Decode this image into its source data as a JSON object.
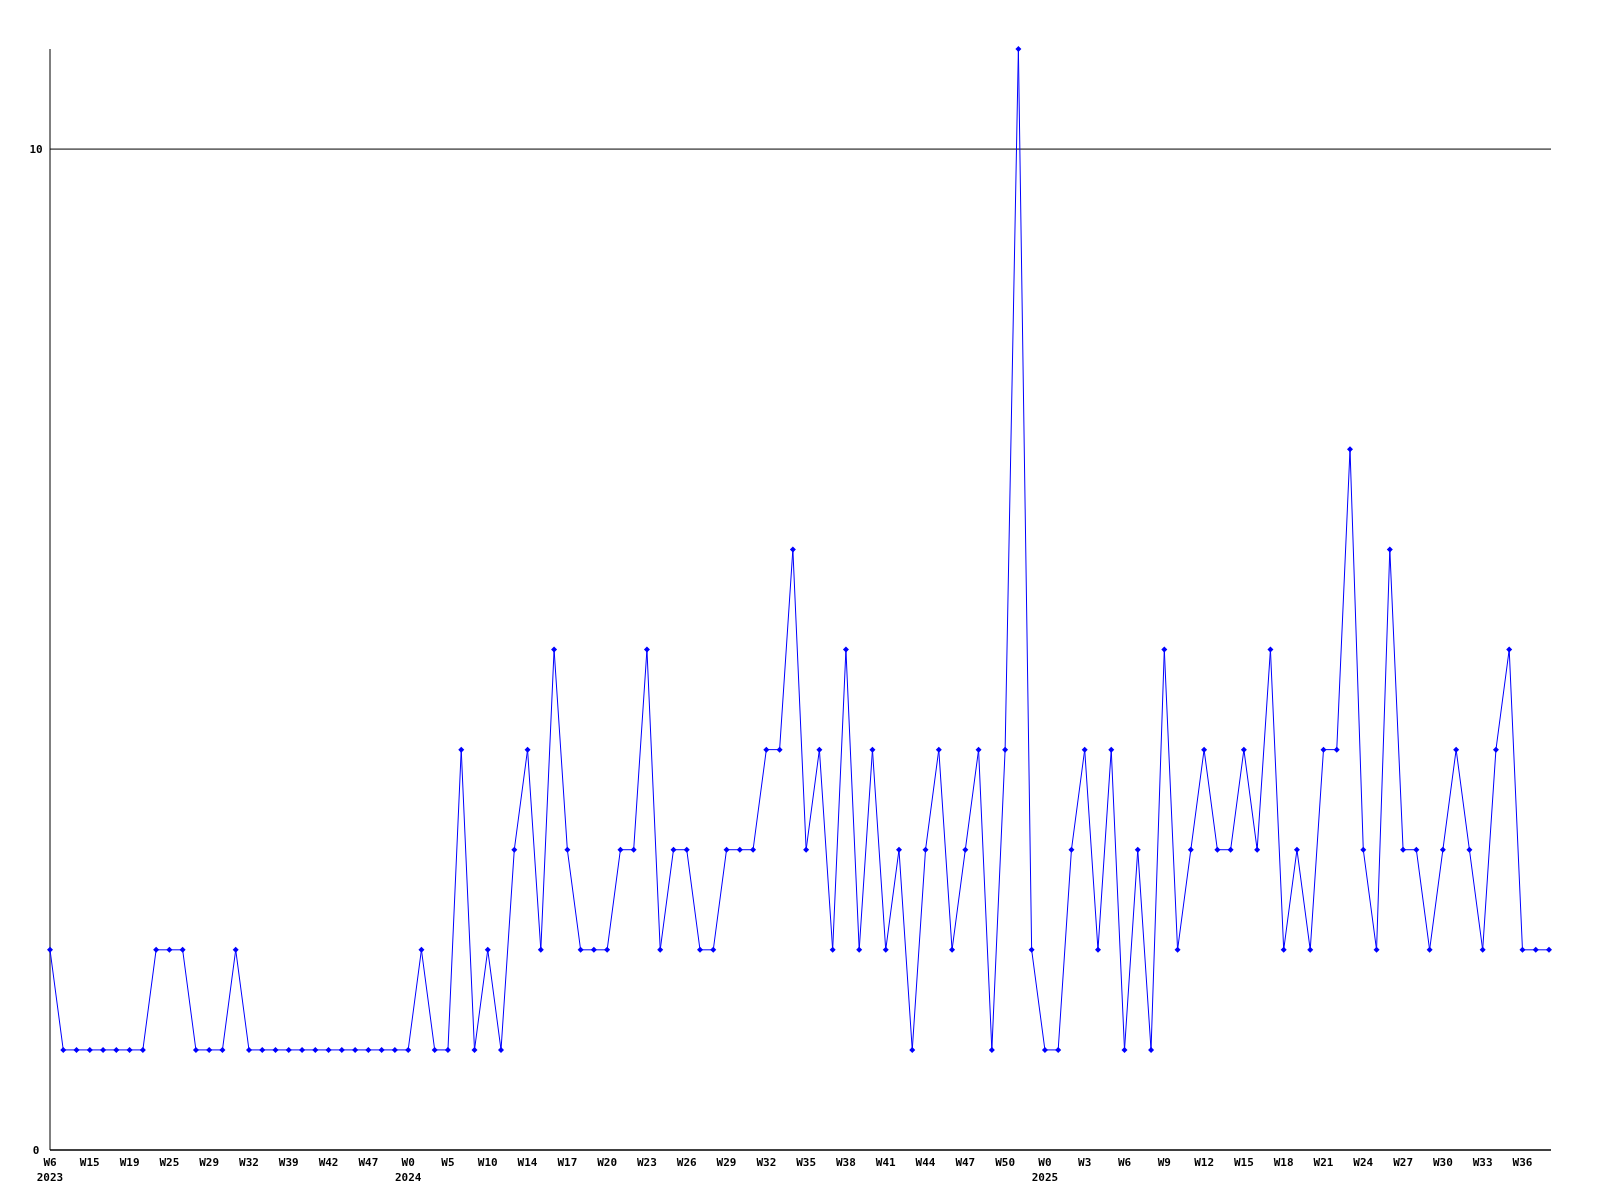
{
  "chart_data": {
    "type": "line",
    "categories": [
      "W6\n2023",
      null,
      null,
      "W15",
      null,
      null,
      "W19",
      null,
      null,
      "W25",
      null,
      null,
      "W29",
      null,
      null,
      "W32",
      null,
      null,
      "W39",
      null,
      null,
      "W42",
      null,
      null,
      "W47",
      null,
      null,
      "W0\n2024",
      null,
      null,
      "W5",
      null,
      null,
      "W10",
      null,
      null,
      "W14",
      null,
      null,
      "W17",
      null,
      null,
      "W20",
      null,
      null,
      "W23",
      null,
      null,
      "W26",
      null,
      null,
      "W29",
      null,
      null,
      "W32",
      null,
      null,
      "W35",
      null,
      null,
      "W38",
      null,
      null,
      "W41",
      null,
      null,
      "W44",
      null,
      null,
      "W47",
      null,
      null,
      "W50",
      null,
      null,
      "W0\n2025",
      null,
      null,
      "W3",
      null,
      null,
      "W6",
      null,
      null,
      "W9",
      null,
      null,
      "W12",
      null,
      null,
      "W15",
      null,
      null,
      "W18",
      null,
      null,
      "W21",
      null,
      null,
      "W24",
      null,
      null,
      "W27",
      null,
      null,
      "W30",
      null,
      null,
      "W33",
      null,
      null,
      "W36",
      null,
      null
    ],
    "series": [
      {
        "color": "#0000ff",
        "values": [
          2,
          1,
          1,
          1,
          1,
          1,
          1,
          1,
          2,
          2,
          2,
          1,
          1,
          1,
          2,
          1,
          1,
          1,
          1,
          1,
          1,
          1,
          1,
          1,
          1,
          1,
          1,
          1,
          2,
          1,
          1,
          4,
          1,
          2,
          1,
          3,
          4,
          2,
          5,
          3,
          2,
          2,
          2,
          3,
          3,
          5,
          2,
          3,
          3,
          2,
          2,
          3,
          3,
          3,
          4,
          4,
          6,
          3,
          4,
          2,
          5,
          2,
          4,
          2,
          3,
          1,
          3,
          4,
          2,
          3,
          4,
          1,
          4,
          11,
          2,
          1,
          1,
          3,
          4,
          2,
          4,
          1,
          3,
          1,
          5,
          2,
          3,
          4,
          3,
          3,
          4,
          3,
          5,
          2,
          3,
          2,
          4,
          4,
          7,
          3,
          2,
          6,
          3,
          3,
          2,
          3,
          4,
          3,
          2,
          4,
          5,
          2,
          2,
          2
        ]
      }
    ],
    "ylim": [
      0,
      11
    ],
    "yticks": [
      0,
      10
    ],
    "grid": "y",
    "marker": "diamond",
    "line_style": "solid"
  }
}
